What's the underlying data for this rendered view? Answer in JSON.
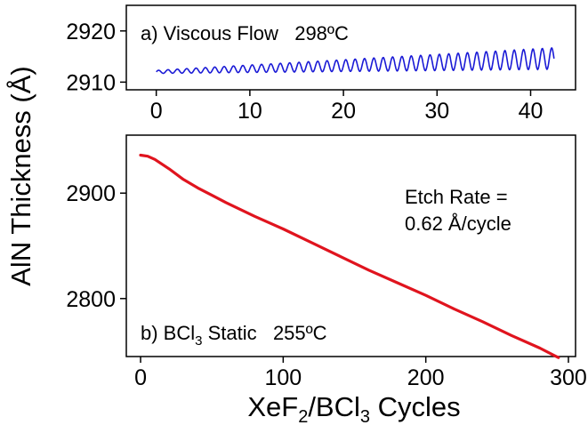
{
  "ylabel": "AlN Thickness (Å)",
  "xlabel": {
    "main": "XeF",
    "sub1": "2",
    "mid": "/BCl",
    "sub2": "3",
    "end": " Cycles"
  },
  "chart_data": [
    {
      "type": "line",
      "panel": "a",
      "annotation": "a) Viscous Flow   298ºC",
      "xlim": [
        -3.2,
        44.8
      ],
      "ylim": [
        2908.5,
        2925
      ],
      "xticks": [
        0,
        10,
        20,
        30,
        40
      ],
      "xtick_labels": [
        "0",
        "10",
        "20",
        "30",
        "40"
      ],
      "yticks": [
        2910,
        2920
      ],
      "ytick_labels": [
        "2910",
        "2920"
      ],
      "color": "#1a1ad6",
      "series": [
        {
          "cycles_start": 0,
          "cycles_end": 42.5,
          "baseline_start": 2912.0,
          "baseline_end": 2914.6,
          "oscillation_amplitude_start": 0.3,
          "oscillation_amplitude_end": 2.1,
          "oscillations_per_cycle": 1
        }
      ]
    },
    {
      "type": "line",
      "panel": "b",
      "annotation_main": "b) BCl",
      "annotation_sub": "3",
      "annotation_end": " Static   255ºC",
      "etch_rate_line1": "Etch Rate =",
      "etch_rate_line2": "0.62 Å/cycle",
      "xlim": [
        -10,
        305
      ],
      "ylim": [
        2745,
        2955
      ],
      "xticks": [
        0,
        100,
        200,
        300
      ],
      "xtick_labels": [
        "0",
        "100",
        "200",
        "300"
      ],
      "yticks": [
        2800,
        2900
      ],
      "ytick_labels": [
        "2800",
        "2900"
      ],
      "color": "#e0141e",
      "series": [
        {
          "x": [
            0,
            5,
            10,
            20,
            30,
            40,
            50,
            60,
            80,
            100,
            120,
            140,
            160,
            180,
            200,
            220,
            240,
            260,
            280,
            290,
            293
          ],
          "y": [
            2936,
            2935,
            2932,
            2923,
            2913,
            2905,
            2898,
            2891,
            2878,
            2866,
            2853,
            2840,
            2827,
            2815,
            2803,
            2790,
            2778,
            2765,
            2753,
            2746,
            2744
          ]
        }
      ]
    }
  ]
}
